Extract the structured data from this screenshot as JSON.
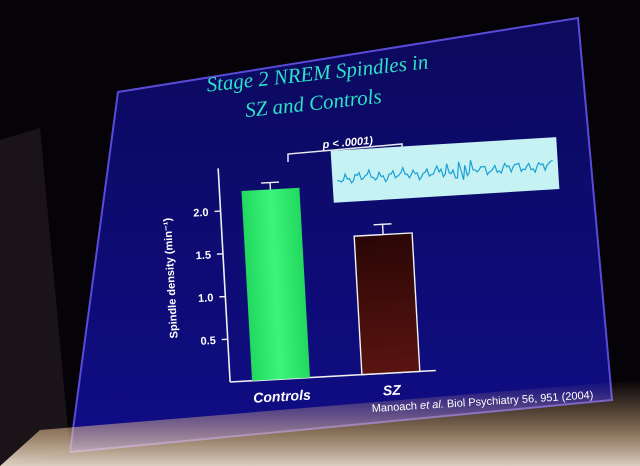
{
  "slide": {
    "title_line1": "Stage 2 NREM Spindles in",
    "title_line2": "SZ and Controls",
    "significance": "p < .0001)",
    "citation_prefix": "Manoach ",
    "citation_etal": "et al.",
    "citation_suffix": " Biol Psychiatry 56, 951 (2004)"
  },
  "colors": {
    "screen": "#0c0a6e",
    "title": "#2fe0c8",
    "controls_bar": "#28ee6a",
    "sz_bar": "#3a0a0c",
    "trace_panel": "#c6f2f4",
    "trace": "#1a9fd6"
  },
  "chart_data": {
    "type": "bar",
    "title": "Stage 2 NREM Spindles in SZ and Controls",
    "categories": [
      "Controls",
      "SZ"
    ],
    "values": [
      2.22,
      1.62
    ],
    "errors": [
      0.08,
      0.12
    ],
    "ylabel": "Spindle density (min⁻¹)",
    "yticks": [
      "0.5",
      "1.0",
      "1.5",
      "2.0"
    ],
    "ylim": [
      0,
      2.5
    ],
    "significance": "p < .0001)"
  }
}
